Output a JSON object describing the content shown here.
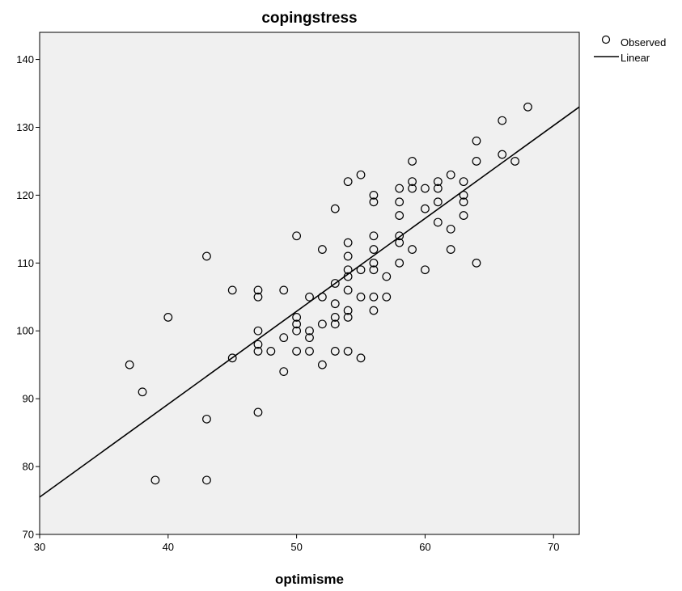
{
  "chart_data": {
    "type": "scatter",
    "title": "copingstress",
    "xlabel": "optimisme",
    "ylabel": "",
    "xlim": [
      30,
      72
    ],
    "ylim": [
      70,
      144
    ],
    "xticks": [
      30,
      40,
      50,
      60,
      70
    ],
    "yticks": [
      70,
      80,
      90,
      100,
      110,
      120,
      130,
      140
    ],
    "grid": false,
    "legend_position": "top-right",
    "plot_background": "#f0f0f0",
    "marker_color": "#000000",
    "line_color": "#000000",
    "series": [
      {
        "name": "Observed",
        "kind": "points",
        "points": [
          [
            37,
            95
          ],
          [
            38,
            91
          ],
          [
            39,
            78
          ],
          [
            40,
            102
          ],
          [
            43,
            111
          ],
          [
            43,
            87
          ],
          [
            43,
            78
          ],
          [
            45,
            106
          ],
          [
            45,
            96
          ],
          [
            47,
            106
          ],
          [
            47,
            105
          ],
          [
            47,
            100
          ],
          [
            47,
            98
          ],
          [
            47,
            97
          ],
          [
            47,
            88
          ],
          [
            48,
            97
          ],
          [
            49,
            106
          ],
          [
            49,
            99
          ],
          [
            49,
            94
          ],
          [
            50,
            114
          ],
          [
            50,
            102
          ],
          [
            50,
            101
          ],
          [
            50,
            100
          ],
          [
            50,
            97
          ],
          [
            51,
            105
          ],
          [
            51,
            100
          ],
          [
            51,
            99
          ],
          [
            51,
            97
          ],
          [
            52,
            112
          ],
          [
            52,
            105
          ],
          [
            52,
            101
          ],
          [
            52,
            95
          ],
          [
            53,
            118
          ],
          [
            53,
            107
          ],
          [
            53,
            104
          ],
          [
            53,
            102
          ],
          [
            53,
            101
          ],
          [
            53,
            97
          ],
          [
            54,
            122
          ],
          [
            54,
            113
          ],
          [
            54,
            111
          ],
          [
            54,
            109
          ],
          [
            54,
            108
          ],
          [
            54,
            106
          ],
          [
            54,
            103
          ],
          [
            54,
            102
          ],
          [
            54,
            97
          ],
          [
            55,
            123
          ],
          [
            55,
            109
          ],
          [
            55,
            105
          ],
          [
            55,
            96
          ],
          [
            56,
            120
          ],
          [
            56,
            119
          ],
          [
            56,
            114
          ],
          [
            56,
            112
          ],
          [
            56,
            110
          ],
          [
            56,
            109
          ],
          [
            56,
            105
          ],
          [
            56,
            103
          ],
          [
            57,
            108
          ],
          [
            57,
            105
          ],
          [
            58,
            121
          ],
          [
            58,
            119
          ],
          [
            58,
            117
          ],
          [
            58,
            114
          ],
          [
            58,
            113
          ],
          [
            58,
            110
          ],
          [
            59,
            125
          ],
          [
            59,
            122
          ],
          [
            59,
            121
          ],
          [
            59,
            112
          ],
          [
            60,
            121
          ],
          [
            60,
            118
          ],
          [
            60,
            109
          ],
          [
            61,
            122
          ],
          [
            61,
            121
          ],
          [
            61,
            119
          ],
          [
            61,
            116
          ],
          [
            62,
            123
          ],
          [
            62,
            115
          ],
          [
            62,
            112
          ],
          [
            63,
            122
          ],
          [
            63,
            120
          ],
          [
            63,
            119
          ],
          [
            63,
            117
          ],
          [
            64,
            128
          ],
          [
            64,
            125
          ],
          [
            64,
            110
          ],
          [
            66,
            131
          ],
          [
            66,
            126
          ],
          [
            67,
            125
          ],
          [
            68,
            133
          ]
        ]
      },
      {
        "name": "Linear",
        "kind": "line",
        "x": [
          30,
          72
        ],
        "y": [
          75.5,
          133
        ]
      }
    ]
  }
}
